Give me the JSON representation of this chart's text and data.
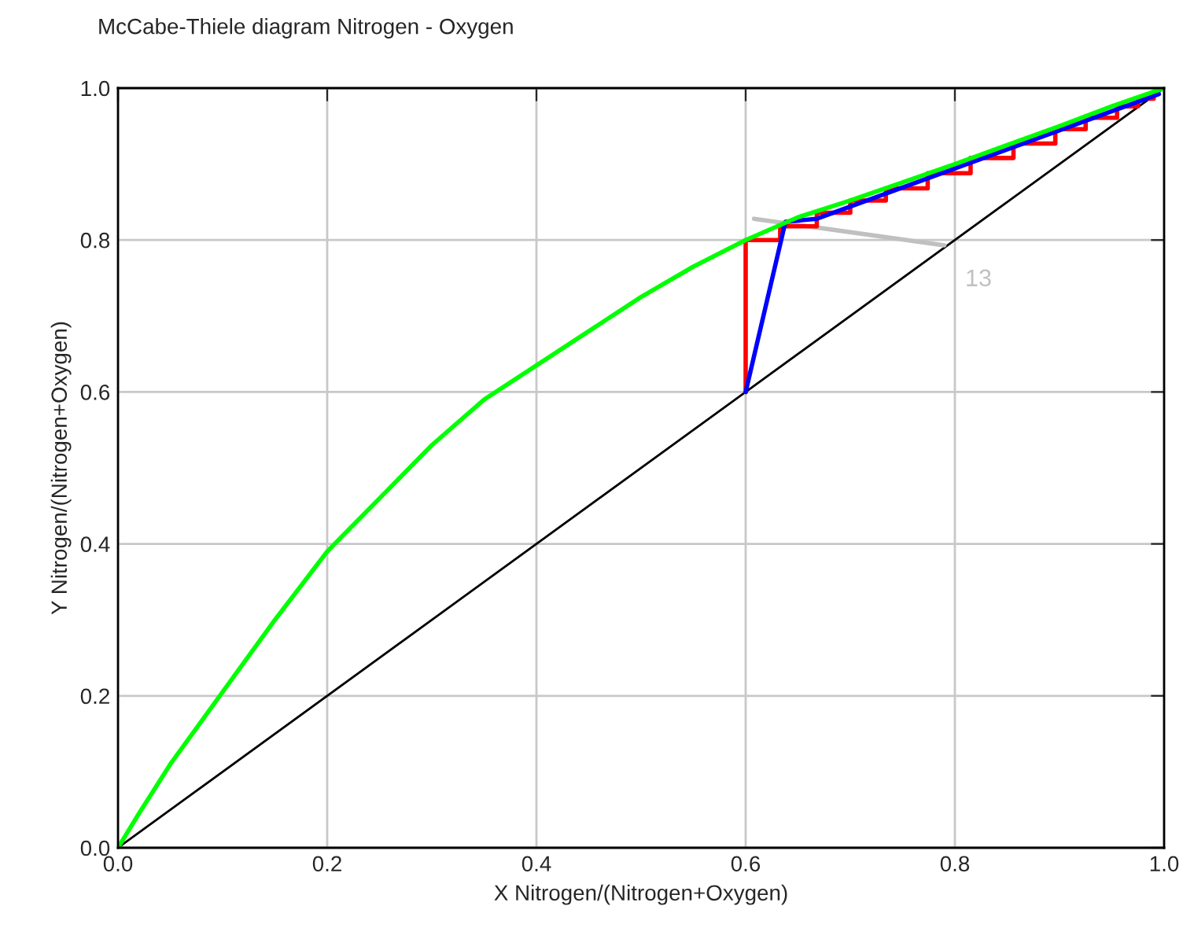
{
  "chart_data": {
    "type": "line",
    "title": "McCabe-Thiele diagram Nitrogen - Oxygen",
    "xlabel": "X Nitrogen/(Nitrogen+Oxygen)",
    "ylabel": "Y Nitrogen/(Nitrogen+Oxygen)",
    "xlim": [
      0,
      1
    ],
    "ylim": [
      0,
      1
    ],
    "xticks": [
      {
        "value": 0,
        "label": "0.0"
      },
      0.2,
      0.4,
      0.6,
      0.8,
      {
        "value": 1,
        "label": "1.0"
      }
    ],
    "yticks": [
      {
        "value": 0,
        "label": "0.0"
      },
      0.2,
      0.4,
      0.6,
      0.8,
      {
        "value": 1,
        "label": "1.0"
      }
    ],
    "grid": true,
    "marker": "none",
    "line_style": "solid",
    "series": [
      {
        "color": "#000000",
        "x": [
          0,
          1
        ],
        "values": [
          0,
          1
        ]
      },
      {
        "color": "#c0c0c0",
        "x": [
          0.608,
          0.79
        ],
        "values": [
          0.828,
          0.793
        ]
      },
      {
        "color": "#ff0000",
        "x": [
          0.6,
          0.6,
          0.633,
          0.633,
          0.668,
          0.668,
          0.7,
          0.7,
          0.734,
          0.734,
          0.774,
          0.774,
          0.815,
          0.815,
          0.856,
          0.856,
          0.896,
          0.896,
          0.925,
          0.925,
          0.955,
          0.955,
          0.975,
          0.975,
          0.99,
          0.99
        ],
        "values": [
          0.6,
          0.8,
          0.8,
          0.818,
          0.818,
          0.836,
          0.836,
          0.852,
          0.852,
          0.868,
          0.868,
          0.888,
          0.888,
          0.908,
          0.908,
          0.927,
          0.927,
          0.946,
          0.946,
          0.961,
          0.961,
          0.976,
          0.976,
          0.986,
          0.986,
          0.994
        ]
      },
      {
        "color": "#0000ff",
        "x": [
          0.6,
          0.638,
          0.668,
          0.995
        ],
        "values": [
          0.6,
          0.824,
          0.828,
          0.992
        ]
      },
      {
        "color": "#00ff00",
        "x": [
          0,
          0.02,
          0.05,
          0.1,
          0.15,
          0.2,
          0.25,
          0.3,
          0.35,
          0.4,
          0.45,
          0.5,
          0.55,
          0.6,
          0.65,
          0.7,
          0.75,
          0.8,
          0.85,
          0.9,
          0.95,
          1.0
        ],
        "values": [
          0,
          0.045,
          0.11,
          0.205,
          0.3,
          0.39,
          0.46,
          0.53,
          0.59,
          0.635,
          0.68,
          0.725,
          0.765,
          0.8,
          0.83,
          0.852,
          0.876,
          0.9,
          0.925,
          0.95,
          0.976,
          1.0
        ]
      }
    ],
    "annotations": [
      "13"
    ]
  }
}
